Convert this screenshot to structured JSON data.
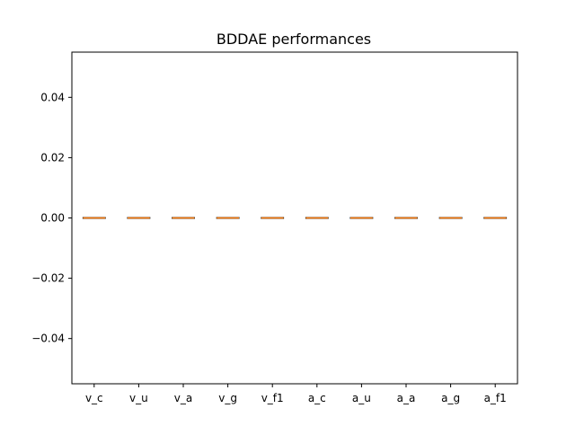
{
  "chart_data": {
    "type": "box",
    "title": "BDDAE performances",
    "xlabel": "",
    "ylabel": "",
    "categories": [
      "v_c",
      "v_u",
      "v_a",
      "v_g",
      "v_f1",
      "a_c",
      "a_u",
      "a_a",
      "a_g",
      "a_f1"
    ],
    "values": [
      0,
      0,
      0,
      0,
      0,
      0,
      0,
      0,
      0,
      0
    ],
    "ylim": [
      -0.055,
      0.055
    ],
    "yticks": [
      -0.04,
      -0.02,
      0.0,
      0.02,
      0.04
    ],
    "ytick_labels": [
      "−0.04",
      "−0.02",
      "0.00",
      "0.02",
      "0.04"
    ],
    "grid": false,
    "legend": "none",
    "colors": {
      "box": "#000000",
      "median": "#ff7f0e",
      "axes": "#000000"
    }
  }
}
